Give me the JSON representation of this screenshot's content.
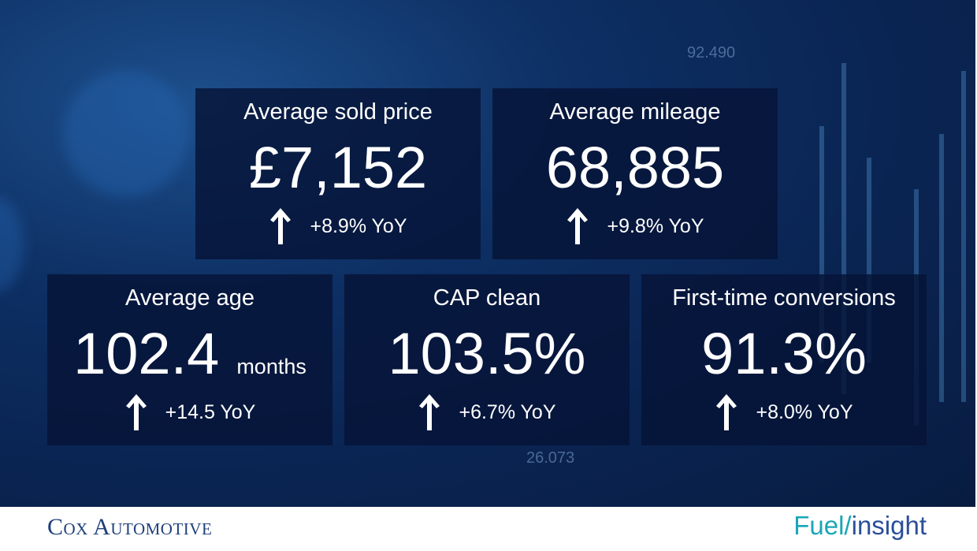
{
  "cards": [
    {
      "title": "Average sold price",
      "value": "£7,152",
      "change": "+8.9% YoY"
    },
    {
      "title": "Average mileage",
      "value": "68,885",
      "change": "+9.8% YoY"
    },
    {
      "title": "Average age",
      "value": "102.4",
      "unit": "months",
      "change": "+14.5 YoY"
    },
    {
      "title": "CAP clean",
      "value": "103.5%",
      "change": "+6.7% YoY"
    },
    {
      "title": "First-time conversions",
      "value": "91.3%",
      "change": "+8.0% YoY"
    }
  ],
  "background_labels": [
    "92.490",
    "26.073"
  ],
  "footer": {
    "left": "Cox Automotive",
    "right_part1": "Fuel/",
    "right_part2": "insight"
  }
}
